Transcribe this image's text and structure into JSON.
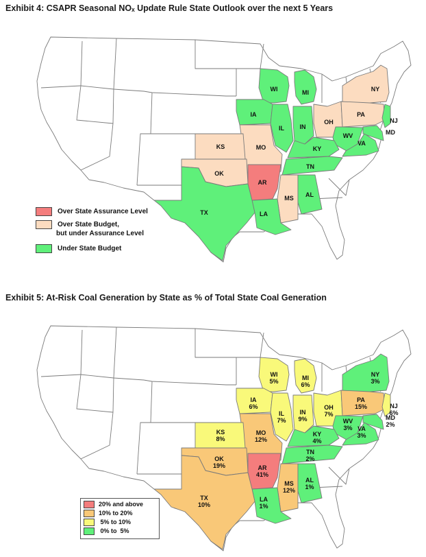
{
  "exhibit4": {
    "title": "Exhibit 4: CSAPR Seasonal NOₓ Update Rule State Outlook over the next 5 Years",
    "legend": [
      {
        "label": "Over State Assurance Level",
        "color": "#f47d7d"
      },
      {
        "label": "Over State Budget,",
        "label2": "but under Assurance Level",
        "color": "#fcdcc0"
      },
      {
        "label": "Under State Budget",
        "color": "#5ff07a"
      }
    ],
    "states": {
      "WI": "Under State Budget",
      "MI": "Under State Budget",
      "IA": "Under State Budget",
      "IL": "Under State Budget",
      "IN": "Under State Budget",
      "KY": "Under State Budget",
      "WV": "Under State Budget",
      "VA": "Under State Budget",
      "MD": "Under State Budget",
      "NJ": "Under State Budget",
      "TN": "Under State Budget",
      "AL": "Under State Budget",
      "LA": "Under State Budget",
      "TX": "Under State Budget",
      "NY": "Over State Budget, but under Assurance Level",
      "PA": "Over State Budget, but under Assurance Level",
      "OH": "Over State Budget, but under Assurance Level",
      "KS": "Over State Budget, but under Assurance Level",
      "MO": "Over State Budget, but under Assurance Level",
      "OK": "Over State Budget, but under Assurance Level",
      "MS": "Over State Budget, but under Assurance Level",
      "AR": "Over State Assurance Level"
    }
  },
  "exhibit5": {
    "title": "Exhibit 5: At-Risk Coal Generation by State as % of Total State Coal Generation",
    "legend": [
      {
        "label": "20% and above",
        "color": "#f47d7d"
      },
      {
        "label": "10% to 20%",
        "color": "#f9c878"
      },
      {
        "label": " 5% to 10%",
        "color": "#f9f97a"
      },
      {
        "label": " 0% to  5%",
        "color": "#5ff07a"
      }
    ],
    "states": {
      "WI": "5%",
      "MI": "6%",
      "IA": "6%",
      "IL": "7%",
      "IN": "9%",
      "OH": "7%",
      "NY": "3%",
      "PA": "15%",
      "NJ": "6%",
      "MD": "2%",
      "WV": "3%",
      "VA": "3%",
      "KY": "4%",
      "TN": "2%",
      "KS": "8%",
      "MO": "12%",
      "OK": "19%",
      "AR": "41%",
      "MS": "12%",
      "AL": "1%",
      "TX": "10%",
      "LA": "1%"
    }
  },
  "colors": {
    "red": "#f47d7d",
    "peach": "#fcdcc0",
    "orange": "#f9c878",
    "yellow": "#f9f97a",
    "green": "#5ff07a",
    "white": "#ffffff",
    "border": "#7a7a7a"
  }
}
